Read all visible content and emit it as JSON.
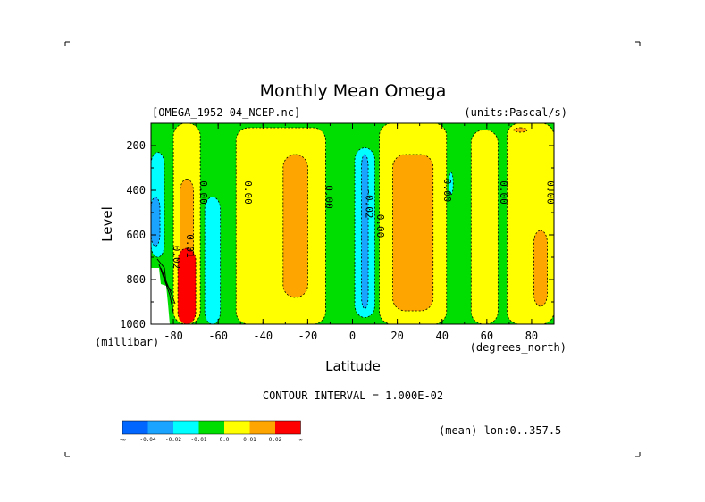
{
  "chart_data": {
    "type": "heatmap",
    "title": "Monthly Mean Omega",
    "file_label": "[OMEGA_1952-04_NCEP.nc]",
    "units_label": "(units:Pascal/s)",
    "xlabel": "Latitude",
    "x_units": "(degrees_north)",
    "ylabel": "Level",
    "y_units": "(millibar)",
    "xlim": [
      -90,
      90
    ],
    "ylim": [
      1000,
      100
    ],
    "x_ticks": [
      -80,
      -60,
      -40,
      -20,
      0,
      20,
      40,
      60,
      80
    ],
    "x_tick_labels": [
      "-80",
      "-60",
      "-40",
      "-20",
      "0",
      "20",
      "40",
      "60",
      "80"
    ],
    "y_ticks": [
      200,
      400,
      600,
      800,
      1000
    ],
    "y_tick_labels": [
      "200",
      "400",
      "600",
      "800",
      "1000"
    ],
    "contour_interval": "CONTOUR INTERVAL = 1.000E-02",
    "mean_note": "(mean) lon:0..357.5",
    "colorbar": {
      "colors": [
        "#0066ff",
        "#1aa3ff",
        "#00ffff",
        "#00dd00",
        "#ffff00",
        "#ffa500",
        "#ff0000"
      ],
      "labels": [
        "-∞",
        "-0.04",
        "-0.02",
        "-0.01",
        "0.0",
        "0.01",
        "0.02",
        "∞"
      ]
    },
    "background_color": "#00dd00",
    "regions": [
      {
        "color": "#00ffff",
        "lat_min": -90,
        "lat_max": -84,
        "p_top": 230,
        "p_bottom": 700
      },
      {
        "color": "#1aa3ff",
        "lat_min": -90,
        "lat_max": -86,
        "p_top": 430,
        "p_bottom": 650
      },
      {
        "color": "#ffff00",
        "lat_min": -80,
        "lat_max": -68,
        "p_top": 100,
        "p_bottom": 1000
      },
      {
        "color": "#ffa500",
        "lat_min": -77,
        "lat_max": -71,
        "p_top": 350,
        "p_bottom": 1000
      },
      {
        "color": "#ff0000",
        "lat_min": -78,
        "lat_max": -70,
        "p_top": 660,
        "p_bottom": 1000
      },
      {
        "color": "#00ffff",
        "lat_min": -66,
        "lat_max": -59,
        "p_top": 430,
        "p_bottom": 1000
      },
      {
        "color": "#ffff00",
        "lat_min": -52,
        "lat_max": -12,
        "p_top": 120,
        "p_bottom": 1000
      },
      {
        "color": "#ffa500",
        "lat_min": -31,
        "lat_max": -20,
        "p_top": 240,
        "p_bottom": 880
      },
      {
        "color": "#00ffff",
        "lat_min": 1,
        "lat_max": 10,
        "p_top": 210,
        "p_bottom": 970
      },
      {
        "color": "#1aa3ff",
        "lat_min": 4,
        "lat_max": 7,
        "p_top": 240,
        "p_bottom": 930
      },
      {
        "color": "#ffff00",
        "lat_min": 12,
        "lat_max": 42,
        "p_top": 100,
        "p_bottom": 1000
      },
      {
        "color": "#ffa500",
        "lat_min": 18,
        "lat_max": 36,
        "p_top": 240,
        "p_bottom": 940
      },
      {
        "color": "#00ffff",
        "lat_min": 43,
        "lat_max": 45,
        "p_top": 320,
        "p_bottom": 420
      },
      {
        "color": "#ffff00",
        "lat_min": 53,
        "lat_max": 65,
        "p_top": 130,
        "p_bottom": 1000
      },
      {
        "color": "#ffff00",
        "lat_min": 69,
        "lat_max": 90,
        "p_top": 100,
        "p_bottom": 1000
      },
      {
        "color": "#ffa500",
        "lat_min": 72,
        "lat_max": 78,
        "p_top": 120,
        "p_bottom": 140
      },
      {
        "color": "#ffa500",
        "lat_min": 81,
        "lat_max": 87,
        "p_top": 580,
        "p_bottom": 920
      }
    ],
    "contour_labels": [
      {
        "text": "0.00",
        "lat": -68,
        "p": 410
      },
      {
        "text": "0.00",
        "lat": -48,
        "p": 410
      },
      {
        "text": "0.00",
        "lat": -12,
        "p": 430
      },
      {
        "text": "-0.02",
        "lat": 6,
        "p": 460
      },
      {
        "text": "0.00",
        "lat": 11,
        "p": 560
      },
      {
        "text": "0.00",
        "lat": 41,
        "p": 400
      },
      {
        "text": "0.00",
        "lat": 66,
        "p": 410
      },
      {
        "text": "0.00",
        "lat": 87,
        "p": 410
      },
      {
        "text": "0.02",
        "lat": -80,
        "p": 700
      },
      {
        "text": "0.01",
        "lat": -74,
        "p": 650
      }
    ]
  }
}
